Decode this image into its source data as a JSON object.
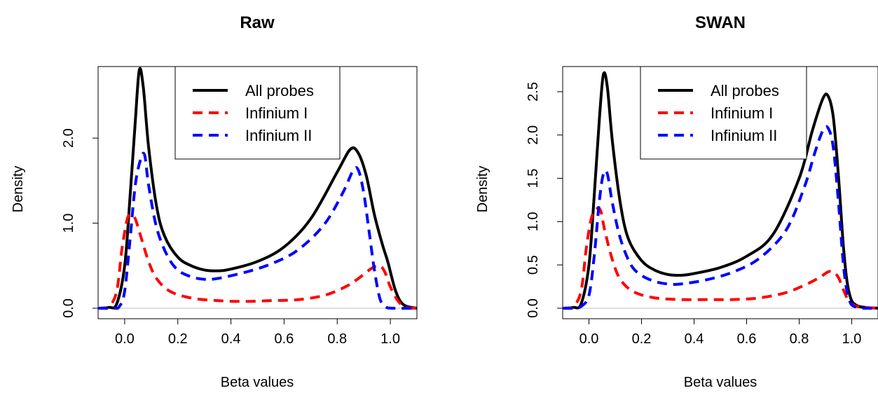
{
  "chart_data": [
    {
      "type": "line",
      "title": "Raw",
      "xlabel": "Beta values",
      "ylabel": "Density",
      "xlim": [
        -0.1,
        1.1
      ],
      "ylim": [
        0,
        2.8
      ],
      "xticks": [
        0.0,
        0.2,
        0.4,
        0.6,
        0.8,
        1.0
      ],
      "xtick_labels": [
        "0.0",
        "0.2",
        "0.4",
        "0.6",
        "0.8",
        "1.0"
      ],
      "yticks": [
        0.0,
        1.0,
        2.0
      ],
      "ytick_labels": [
        "0.0",
        "1.0",
        "2.0"
      ],
      "legend": {
        "position": "top-right"
      },
      "series": [
        {
          "name": "All probes",
          "color": "#000000",
          "dash": "solid",
          "points": [
            [
              -0.1,
              0
            ],
            [
              -0.06,
              0.01
            ],
            [
              -0.03,
              0.05
            ],
            [
              0.0,
              0.5
            ],
            [
              0.02,
              1.3
            ],
            [
              0.04,
              2.2
            ],
            [
              0.055,
              2.8
            ],
            [
              0.07,
              2.6
            ],
            [
              0.09,
              1.9
            ],
            [
              0.12,
              1.2
            ],
            [
              0.15,
              0.85
            ],
            [
              0.2,
              0.6
            ],
            [
              0.25,
              0.5
            ],
            [
              0.3,
              0.45
            ],
            [
              0.35,
              0.44
            ],
            [
              0.4,
              0.46
            ],
            [
              0.5,
              0.55
            ],
            [
              0.6,
              0.72
            ],
            [
              0.7,
              1.05
            ],
            [
              0.8,
              1.6
            ],
            [
              0.85,
              1.87
            ],
            [
              0.88,
              1.82
            ],
            [
              0.91,
              1.55
            ],
            [
              0.94,
              1.1
            ],
            [
              0.97,
              0.75
            ],
            [
              0.99,
              0.55
            ],
            [
              1.02,
              0.2
            ],
            [
              1.05,
              0.04
            ],
            [
              1.1,
              0
            ]
          ]
        },
        {
          "name": "Infinium I",
          "color": "#ff0000",
          "dash": "dashed",
          "points": [
            [
              -0.1,
              0
            ],
            [
              -0.06,
              0.02
            ],
            [
              -0.03,
              0.2
            ],
            [
              -0.01,
              0.7
            ],
            [
              0.01,
              1.05
            ],
            [
              0.025,
              1.1
            ],
            [
              0.04,
              1.05
            ],
            [
              0.06,
              0.85
            ],
            [
              0.09,
              0.55
            ],
            [
              0.12,
              0.35
            ],
            [
              0.17,
              0.2
            ],
            [
              0.25,
              0.12
            ],
            [
              0.35,
              0.09
            ],
            [
              0.45,
              0.08
            ],
            [
              0.55,
              0.09
            ],
            [
              0.65,
              0.1
            ],
            [
              0.75,
              0.15
            ],
            [
              0.83,
              0.25
            ],
            [
              0.88,
              0.35
            ],
            [
              0.93,
              0.47
            ],
            [
              0.96,
              0.5
            ],
            [
              0.98,
              0.42
            ],
            [
              1.0,
              0.25
            ],
            [
              1.03,
              0.08
            ],
            [
              1.06,
              0.01
            ],
            [
              1.1,
              0
            ]
          ]
        },
        {
          "name": "Infinium II",
          "color": "#0000ff",
          "dash": "dashed",
          "points": [
            [
              -0.1,
              0
            ],
            [
              -0.04,
              0
            ],
            [
              -0.02,
              0.02
            ],
            [
              0.0,
              0.2
            ],
            [
              0.02,
              0.8
            ],
            [
              0.04,
              1.45
            ],
            [
              0.06,
              1.75
            ],
            [
              0.075,
              1.8
            ],
            [
              0.09,
              1.45
            ],
            [
              0.12,
              0.95
            ],
            [
              0.16,
              0.62
            ],
            [
              0.2,
              0.45
            ],
            [
              0.25,
              0.37
            ],
            [
              0.3,
              0.34
            ],
            [
              0.35,
              0.35
            ],
            [
              0.45,
              0.42
            ],
            [
              0.55,
              0.52
            ],
            [
              0.65,
              0.68
            ],
            [
              0.75,
              0.98
            ],
            [
              0.82,
              1.35
            ],
            [
              0.86,
              1.62
            ],
            [
              0.88,
              1.62
            ],
            [
              0.9,
              1.35
            ],
            [
              0.92,
              0.9
            ],
            [
              0.94,
              0.45
            ],
            [
              0.96,
              0.12
            ],
            [
              0.98,
              0.02
            ],
            [
              1.01,
              0
            ],
            [
              1.1,
              0
            ]
          ]
        }
      ]
    },
    {
      "type": "line",
      "title": "SWAN",
      "xlabel": "Beta values",
      "ylabel": "Density",
      "xlim": [
        -0.1,
        1.1
      ],
      "ylim": [
        0,
        2.75
      ],
      "xticks": [
        0.0,
        0.2,
        0.4,
        0.6,
        0.8,
        1.0
      ],
      "xtick_labels": [
        "0.0",
        "0.2",
        "0.4",
        "0.6",
        "0.8",
        "1.0"
      ],
      "yticks": [
        0.0,
        0.5,
        1.0,
        1.5,
        2.0,
        2.5
      ],
      "ytick_labels": [
        "0.0",
        "0.5",
        "1.0",
        "1.5",
        "2.0",
        "2.5"
      ],
      "legend": {
        "position": "top-right"
      },
      "series": [
        {
          "name": "All probes",
          "color": "#000000",
          "dash": "solid",
          "points": [
            [
              -0.1,
              0
            ],
            [
              -0.06,
              0.01
            ],
            [
              -0.03,
              0.05
            ],
            [
              0.0,
              0.5
            ],
            [
              0.02,
              1.3
            ],
            [
              0.04,
              2.2
            ],
            [
              0.055,
              2.7
            ],
            [
              0.07,
              2.55
            ],
            [
              0.09,
              1.9
            ],
            [
              0.12,
              1.2
            ],
            [
              0.15,
              0.8
            ],
            [
              0.2,
              0.55
            ],
            [
              0.25,
              0.44
            ],
            [
              0.3,
              0.39
            ],
            [
              0.35,
              0.38
            ],
            [
              0.4,
              0.4
            ],
            [
              0.5,
              0.47
            ],
            [
              0.6,
              0.6
            ],
            [
              0.7,
              0.85
            ],
            [
              0.8,
              1.5
            ],
            [
              0.85,
              2.05
            ],
            [
              0.89,
              2.42
            ],
            [
              0.91,
              2.45
            ],
            [
              0.93,
              2.2
            ],
            [
              0.95,
              1.5
            ],
            [
              0.97,
              0.65
            ],
            [
              0.99,
              0.18
            ],
            [
              1.02,
              0.03
            ],
            [
              1.1,
              0
            ]
          ]
        },
        {
          "name": "Infinium I",
          "color": "#ff0000",
          "dash": "dashed",
          "points": [
            [
              -0.1,
              0
            ],
            [
              -0.06,
              0.02
            ],
            [
              -0.03,
              0.2
            ],
            [
              -0.01,
              0.7
            ],
            [
              0.01,
              1.05
            ],
            [
              0.03,
              1.15
            ],
            [
              0.045,
              1.12
            ],
            [
              0.06,
              0.9
            ],
            [
              0.09,
              0.55
            ],
            [
              0.12,
              0.33
            ],
            [
              0.17,
              0.19
            ],
            [
              0.25,
              0.12
            ],
            [
              0.35,
              0.1
            ],
            [
              0.45,
              0.1
            ],
            [
              0.55,
              0.1
            ],
            [
              0.65,
              0.12
            ],
            [
              0.75,
              0.18
            ],
            [
              0.83,
              0.28
            ],
            [
              0.88,
              0.36
            ],
            [
              0.91,
              0.42
            ],
            [
              0.93,
              0.42
            ],
            [
              0.95,
              0.35
            ],
            [
              0.97,
              0.2
            ],
            [
              0.99,
              0.08
            ],
            [
              1.02,
              0.02
            ],
            [
              1.1,
              0
            ]
          ]
        },
        {
          "name": "Infinium II",
          "color": "#0000ff",
          "dash": "dashed",
          "points": [
            [
              -0.1,
              0
            ],
            [
              -0.06,
              0
            ],
            [
              -0.03,
              0.02
            ],
            [
              0.0,
              0.15
            ],
            [
              0.02,
              0.6
            ],
            [
              0.04,
              1.25
            ],
            [
              0.055,
              1.55
            ],
            [
              0.07,
              1.55
            ],
            [
              0.09,
              1.2
            ],
            [
              0.12,
              0.8
            ],
            [
              0.16,
              0.5
            ],
            [
              0.2,
              0.38
            ],
            [
              0.25,
              0.31
            ],
            [
              0.3,
              0.28
            ],
            [
              0.35,
              0.28
            ],
            [
              0.45,
              0.33
            ],
            [
              0.55,
              0.42
            ],
            [
              0.65,
              0.58
            ],
            [
              0.75,
              0.9
            ],
            [
              0.82,
              1.4
            ],
            [
              0.86,
              1.8
            ],
            [
              0.89,
              2.05
            ],
            [
              0.91,
              2.08
            ],
            [
              0.93,
              1.85
            ],
            [
              0.95,
              1.2
            ],
            [
              0.97,
              0.45
            ],
            [
              0.99,
              0.1
            ],
            [
              1.02,
              0.01
            ],
            [
              1.1,
              0
            ]
          ]
        }
      ]
    }
  ]
}
